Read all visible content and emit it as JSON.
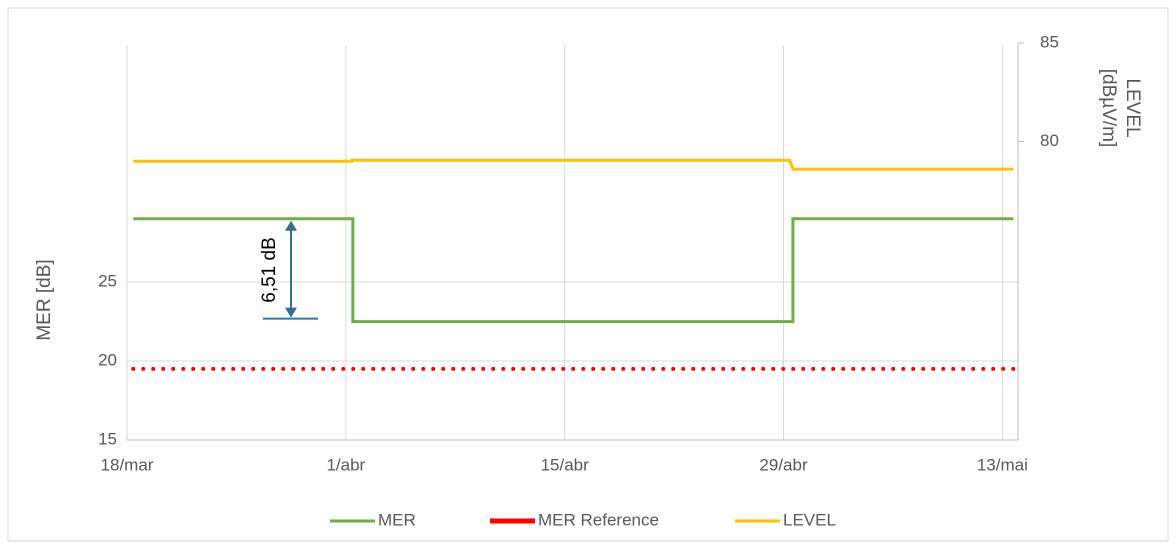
{
  "chart_data": {
    "type": "line",
    "ylabel": "MER [dB]",
    "y2label_lines": [
      "LEVEL",
      "[dBµV/m]"
    ],
    "xlim": [
      0,
      57
    ],
    "xticks": [
      {
        "value": 0,
        "label": "18/mar"
      },
      {
        "value": 14,
        "label": "1/abr"
      },
      {
        "value": 28,
        "label": "15/abr"
      },
      {
        "value": 42,
        "label": "29/abr"
      },
      {
        "value": 56,
        "label": "13/mai"
      }
    ],
    "ylim": [
      15,
      40
    ],
    "yticks": [
      15,
      20,
      25
    ],
    "y2lim": [
      65,
      85
    ],
    "y2ticks": [
      80,
      85
    ],
    "grid": true,
    "legend": "bottom",
    "series": [
      {
        "name": "MER",
        "color": "#70ad47",
        "style": "solid",
        "x": [
          0.4,
          14.45,
          14.45,
          42.6,
          42.6,
          56.7
        ],
        "values": [
          29.0,
          29.0,
          22.49,
          22.49,
          29.0,
          29.0
        ]
      },
      {
        "name": "MER Reference",
        "color": "#ff0000",
        "style": "dotted",
        "x": [
          0.4,
          56.7
        ],
        "values": [
          19.5,
          19.5
        ]
      },
      {
        "name": "LEVEL",
        "color": "#ffc000",
        "style": "solid",
        "axis": "y2",
        "x": [
          0.4,
          14.4,
          14.4,
          42.4,
          42.6,
          56.7
        ],
        "values": [
          79.0,
          79.0,
          79.05,
          79.05,
          78.6,
          78.6
        ]
      }
    ],
    "annotations": [
      {
        "text": "6,51 dB"
      }
    ]
  }
}
